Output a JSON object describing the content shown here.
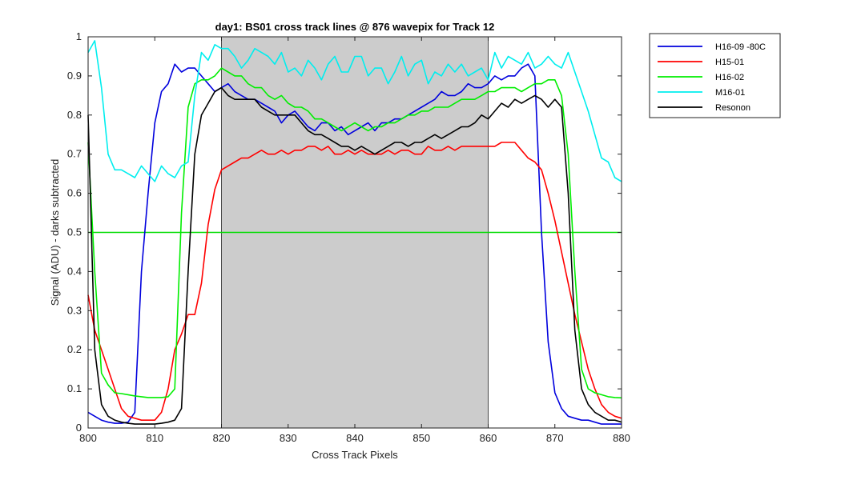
{
  "chart_data": {
    "type": "line",
    "title": "day1: BS01  cross track lines @ 876 wavepix for Track 12",
    "xlabel": "Cross Track Pixels",
    "ylabel": "Signal (ADU) - darks subtracted",
    "xlim": [
      800,
      880
    ],
    "ylim": [
      0,
      1
    ],
    "x_ticks": [
      "800",
      "810",
      "820",
      "830",
      "840",
      "850",
      "860",
      "870",
      "880"
    ],
    "y_ticks": [
      "0",
      "0.1",
      "0.2",
      "0.3",
      "0.4",
      "0.5",
      "0.6",
      "0.7",
      "0.8",
      "0.9",
      "1"
    ],
    "grid": false,
    "legend_position": "outside-top-right",
    "shaded_region": {
      "x_start": 820,
      "x_end": 860,
      "color": "#cccccc"
    },
    "reference_line": {
      "y": 0.5,
      "color": "#00dd00"
    },
    "x": [
      800,
      801,
      802,
      803,
      804,
      805,
      806,
      807,
      808,
      809,
      810,
      811,
      812,
      813,
      814,
      815,
      816,
      817,
      818,
      819,
      820,
      821,
      822,
      823,
      824,
      825,
      826,
      827,
      828,
      829,
      830,
      831,
      832,
      833,
      834,
      835,
      836,
      837,
      838,
      839,
      840,
      841,
      842,
      843,
      844,
      845,
      846,
      847,
      848,
      849,
      850,
      851,
      852,
      853,
      854,
      855,
      856,
      857,
      858,
      859,
      860,
      861,
      862,
      863,
      864,
      865,
      866,
      867,
      868,
      869,
      870,
      871,
      872,
      873,
      874,
      875,
      876,
      877,
      878,
      879,
      880
    ],
    "series": [
      {
        "name": "H16-09 -80C",
        "color": "#0000dd",
        "values": [
          0.04,
          0.03,
          0.02,
          0.015,
          0.012,
          0.012,
          0.015,
          0.04,
          0.4,
          0.6,
          0.78,
          0.86,
          0.88,
          0.93,
          0.91,
          0.92,
          0.92,
          0.9,
          0.88,
          0.86,
          0.87,
          0.88,
          0.86,
          0.85,
          0.84,
          0.84,
          0.83,
          0.82,
          0.81,
          0.78,
          0.8,
          0.81,
          0.79,
          0.77,
          0.76,
          0.78,
          0.78,
          0.76,
          0.77,
          0.75,
          0.76,
          0.77,
          0.78,
          0.76,
          0.78,
          0.78,
          0.79,
          0.79,
          0.8,
          0.81,
          0.82,
          0.83,
          0.84,
          0.86,
          0.85,
          0.85,
          0.86,
          0.88,
          0.87,
          0.87,
          0.88,
          0.9,
          0.89,
          0.9,
          0.9,
          0.92,
          0.93,
          0.9,
          0.5,
          0.22,
          0.09,
          0.05,
          0.03,
          0.025,
          0.02,
          0.02,
          0.015,
          0.01,
          0.01,
          0.01,
          0.01
        ]
      },
      {
        "name": "H15-01",
        "color": "#ff0000",
        "values": [
          0.34,
          0.25,
          0.2,
          0.15,
          0.1,
          0.05,
          0.03,
          0.025,
          0.02,
          0.02,
          0.02,
          0.04,
          0.1,
          0.2,
          0.24,
          0.29,
          0.29,
          0.37,
          0.52,
          0.61,
          0.66,
          0.67,
          0.68,
          0.69,
          0.69,
          0.7,
          0.71,
          0.7,
          0.7,
          0.71,
          0.7,
          0.71,
          0.71,
          0.72,
          0.72,
          0.71,
          0.72,
          0.7,
          0.7,
          0.71,
          0.7,
          0.71,
          0.7,
          0.7,
          0.7,
          0.71,
          0.7,
          0.71,
          0.71,
          0.7,
          0.7,
          0.72,
          0.71,
          0.71,
          0.72,
          0.71,
          0.72,
          0.72,
          0.72,
          0.72,
          0.72,
          0.72,
          0.73,
          0.73,
          0.73,
          0.71,
          0.69,
          0.68,
          0.66,
          0.6,
          0.53,
          0.45,
          0.37,
          0.29,
          0.22,
          0.15,
          0.1,
          0.06,
          0.04,
          0.03,
          0.025
        ]
      },
      {
        "name": "H16-02",
        "color": "#00ee00",
        "values": [
          0.73,
          0.4,
          0.14,
          0.11,
          0.09,
          0.088,
          0.085,
          0.082,
          0.08,
          0.078,
          0.078,
          0.078,
          0.08,
          0.1,
          0.55,
          0.82,
          0.88,
          0.89,
          0.89,
          0.9,
          0.92,
          0.91,
          0.9,
          0.9,
          0.88,
          0.87,
          0.87,
          0.85,
          0.84,
          0.85,
          0.83,
          0.82,
          0.82,
          0.81,
          0.79,
          0.79,
          0.78,
          0.77,
          0.76,
          0.77,
          0.78,
          0.77,
          0.76,
          0.77,
          0.77,
          0.78,
          0.78,
          0.79,
          0.8,
          0.8,
          0.81,
          0.81,
          0.82,
          0.82,
          0.82,
          0.83,
          0.84,
          0.84,
          0.84,
          0.85,
          0.86,
          0.86,
          0.87,
          0.87,
          0.87,
          0.86,
          0.87,
          0.88,
          0.88,
          0.89,
          0.89,
          0.85,
          0.7,
          0.4,
          0.15,
          0.1,
          0.09,
          0.085,
          0.08,
          0.078,
          0.077
        ]
      },
      {
        "name": "M16-01",
        "color": "#00eeee",
        "values": [
          0.96,
          0.99,
          0.87,
          0.7,
          0.66,
          0.66,
          0.65,
          0.64,
          0.67,
          0.65,
          0.63,
          0.67,
          0.65,
          0.64,
          0.67,
          0.68,
          0.85,
          0.96,
          0.94,
          0.98,
          0.97,
          0.97,
          0.95,
          0.92,
          0.94,
          0.97,
          0.96,
          0.95,
          0.93,
          0.96,
          0.91,
          0.92,
          0.9,
          0.94,
          0.92,
          0.89,
          0.93,
          0.95,
          0.91,
          0.91,
          0.95,
          0.95,
          0.9,
          0.92,
          0.92,
          0.88,
          0.91,
          0.95,
          0.9,
          0.93,
          0.94,
          0.88,
          0.91,
          0.9,
          0.93,
          0.91,
          0.93,
          0.9,
          0.91,
          0.92,
          0.89,
          0.96,
          0.92,
          0.95,
          0.94,
          0.93,
          0.96,
          0.92,
          0.93,
          0.95,
          0.93,
          0.92,
          0.96,
          0.91,
          0.86,
          0.81,
          0.75,
          0.69,
          0.68,
          0.64,
          0.63
        ]
      },
      {
        "name": "Resonon",
        "color": "#000000",
        "values": [
          0.8,
          0.2,
          0.06,
          0.03,
          0.02,
          0.015,
          0.012,
          0.01,
          0.01,
          0.01,
          0.01,
          0.012,
          0.015,
          0.02,
          0.05,
          0.4,
          0.7,
          0.8,
          0.83,
          0.86,
          0.87,
          0.85,
          0.84,
          0.84,
          0.84,
          0.84,
          0.82,
          0.81,
          0.8,
          0.8,
          0.8,
          0.8,
          0.78,
          0.76,
          0.75,
          0.75,
          0.74,
          0.73,
          0.72,
          0.72,
          0.71,
          0.72,
          0.71,
          0.7,
          0.71,
          0.72,
          0.73,
          0.73,
          0.72,
          0.73,
          0.73,
          0.74,
          0.75,
          0.74,
          0.75,
          0.76,
          0.77,
          0.77,
          0.78,
          0.8,
          0.79,
          0.81,
          0.83,
          0.82,
          0.84,
          0.83,
          0.84,
          0.85,
          0.84,
          0.82,
          0.84,
          0.82,
          0.6,
          0.25,
          0.1,
          0.06,
          0.04,
          0.03,
          0.02,
          0.02,
          0.015
        ]
      }
    ]
  }
}
